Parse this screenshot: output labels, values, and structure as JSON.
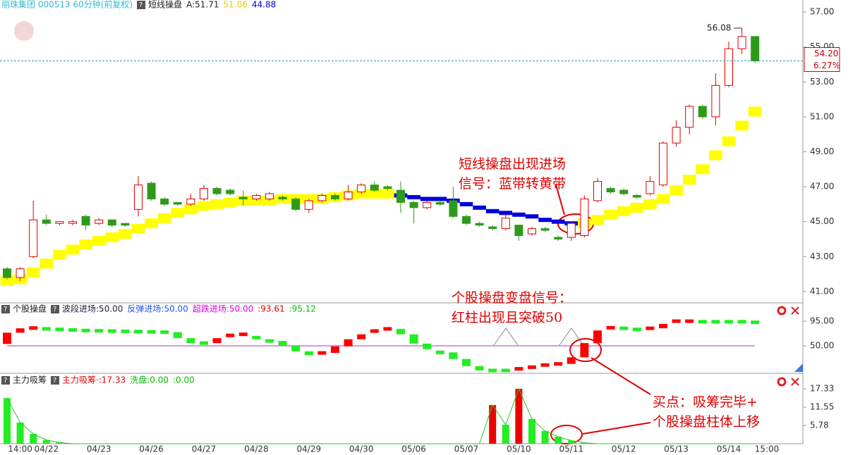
{
  "chart_data": [
    {
      "type": "candlestick",
      "legend": [
        {
          "text": "丽珠集团 000513 60分钟(前复权)",
          "color": "#33bbcc"
        },
        {
          "text": "短线操盘",
          "color": "#222222"
        },
        {
          "text": "A:51.71",
          "color": "#222222"
        },
        {
          "text": "51.06",
          "color": "#e6d200"
        },
        {
          "text": "44.88",
          "color": "#0000cc"
        }
      ],
      "categories": [
        null,
        "14:00",
        null,
        "04/22",
        null,
        null,
        null,
        "04/23",
        null,
        null,
        null,
        "04/26",
        null,
        null,
        null,
        "04/27",
        null,
        null,
        null,
        "04/28",
        null,
        null,
        null,
        "04/29",
        null,
        null,
        null,
        "04/30",
        null,
        null,
        null,
        "05/06",
        null,
        null,
        null,
        "05/07",
        null,
        null,
        null,
        "05/10",
        null,
        null,
        null,
        "05/11",
        null,
        null,
        null,
        "05/12",
        null,
        null,
        null,
        "05/13",
        null,
        null,
        null,
        "05/14",
        null,
        null
      ],
      "end_label": "15:00",
      "open": [
        42.3,
        41.8,
        43.0,
        45.1,
        44.9,
        44.9,
        45.3,
        44.9,
        45.1,
        44.9,
        45.7,
        47.2,
        46.3,
        46.1,
        46.0,
        46.3,
        46.9,
        46.8,
        46.4,
        46.3,
        46.3,
        46.4,
        46.3,
        45.7,
        46.2,
        46.5,
        46.3,
        46.7,
        47.1,
        47.0,
        46.8,
        46.1,
        45.8,
        46.1,
        46.2,
        45.3,
        44.9,
        44.7,
        44.6,
        44.8,
        44.3,
        44.6,
        44.1,
        44.1,
        44.2,
        46.2,
        46.9,
        46.8,
        46.5,
        46.6,
        47.1,
        49.5,
        50.4,
        51.6,
        51.0,
        52.8,
        54.9,
        55.6
      ],
      "high": [
        42.4,
        42.4,
        46.2,
        45.4,
        45.0,
        45.1,
        45.4,
        45.2,
        45.1,
        44.9,
        47.6,
        47.3,
        46.4,
        46.1,
        46.6,
        47.1,
        47.0,
        46.9,
        46.8,
        46.6,
        46.7,
        46.5,
        46.4,
        46.3,
        46.6,
        46.6,
        47.1,
        47.2,
        47.3,
        47.1,
        47.3,
        46.2,
        46.2,
        46.2,
        47.0,
        45.4,
        45.0,
        44.8,
        45.4,
        44.8,
        44.7,
        44.7,
        44.2,
        45.0,
        46.5,
        47.5,
        47.0,
        46.9,
        46.6,
        47.6,
        49.6,
        50.8,
        51.7,
        51.7,
        53.5,
        55.3,
        56.08,
        55.6
      ],
      "low": [
        41.7,
        41.6,
        42.9,
        44.8,
        44.8,
        44.8,
        44.5,
        44.8,
        44.7,
        44.7,
        45.3,
        46.2,
        45.9,
        45.9,
        45.9,
        46.2,
        46.5,
        46.5,
        45.9,
        46.2,
        46.2,
        46.2,
        45.6,
        45.5,
        46.1,
        46.2,
        46.2,
        46.6,
        46.7,
        46.8,
        45.5,
        44.9,
        45.7,
        45.9,
        45.2,
        44.8,
        44.7,
        44.5,
        44.5,
        43.9,
        44.2,
        44.4,
        43.9,
        43.9,
        44.1,
        46.1,
        46.6,
        46.5,
        46.3,
        46.5,
        47.0,
        49.3,
        50.0,
        50.9,
        50.5,
        52.7,
        54.6,
        54.1
      ],
      "close": [
        41.8,
        42.3,
        45.1,
        44.9,
        45.0,
        45.0,
        44.8,
        45.1,
        44.8,
        44.8,
        47.1,
        46.3,
        46.0,
        46.0,
        46.3,
        46.9,
        46.6,
        46.6,
        46.3,
        46.5,
        46.6,
        46.3,
        45.7,
        46.2,
        46.5,
        46.3,
        46.7,
        47.1,
        46.8,
        46.9,
        46.1,
        45.8,
        46.1,
        46.0,
        45.3,
        44.9,
        44.8,
        44.6,
        45.2,
        44.2,
        44.6,
        44.5,
        44.0,
        44.9,
        46.3,
        47.3,
        46.7,
        46.6,
        46.4,
        47.3,
        49.5,
        50.4,
        51.6,
        51.0,
        52.8,
        54.9,
        55.6,
        54.2
      ],
      "up_color": "#e00000",
      "down_color": "#2e9a1a",
      "band": {
        "values": [
          41.6,
          41.7,
          42.1,
          42.6,
          43.1,
          43.4,
          43.7,
          43.9,
          44.1,
          44.3,
          44.6,
          44.9,
          45.2,
          45.5,
          45.7,
          45.9,
          46.0,
          46.1,
          46.2,
          46.2,
          46.2,
          46.3,
          46.3,
          46.3,
          46.3,
          46.4,
          46.5,
          46.6,
          46.6,
          46.6,
          46.5,
          46.4,
          46.3,
          46.3,
          46.2,
          46.0,
          45.8,
          45.6,
          45.5,
          45.4,
          45.3,
          45.1,
          45.0,
          44.9,
          44.9,
          45.1,
          45.4,
          45.6,
          45.8,
          46.0,
          46.3,
          46.8,
          47.4,
          48.0,
          48.8,
          49.6,
          50.5,
          51.3
        ],
        "colors": [
          "#ffff00",
          "#ffff00",
          "#ffff00",
          "#ffff00",
          "#ffff00",
          "#ffff00",
          "#ffff00",
          "#ffff00",
          "#ffff00",
          "#ffff00",
          "#ffff00",
          "#ffff00",
          "#ffff00",
          "#ffff00",
          "#ffff00",
          "#ffff00",
          "#ffff00",
          "#ffff00",
          "#ffff00",
          "#ffff00",
          "#ffff00",
          "#ffff00",
          "#ffff00",
          "#ffff00",
          "#ffff00",
          "#ffff00",
          "#ffff00",
          "#ffff00",
          "#ffff00",
          "#ffff00",
          "#0000dd",
          "#0000dd",
          "#0000dd",
          "#0000dd",
          "#0000dd",
          "#0000dd",
          "#0000dd",
          "#0000dd",
          "#0000dd",
          "#0000dd",
          "#0000dd",
          "#0000dd",
          "#0000dd",
          "#0000dd",
          "#ffff00",
          "#ffff00",
          "#ffff00",
          "#ffff00",
          "#ffff00",
          "#ffff00",
          "#ffff00",
          "#ffff00",
          "#ffff00",
          "#ffff00",
          "#ffff00",
          "#ffff00",
          "#ffff00",
          "#ffff00"
        ]
      },
      "ylim": [
        40.35,
        57.69
      ],
      "yticks": [
        {
          "value": 41,
          "label": "41.00"
        },
        {
          "value": 43,
          "label": "43.00"
        },
        {
          "value": 45,
          "label": "45.00"
        },
        {
          "value": 47,
          "label": "47.00"
        },
        {
          "value": 49,
          "label": "49.00"
        },
        {
          "value": 51,
          "label": "51.00"
        },
        {
          "value": 53,
          "label": "53.00"
        },
        {
          "value": 55,
          "label": "55.00"
        },
        {
          "value": 57,
          "label": "57.00"
        }
      ],
      "last_price": {
        "value": 54.2,
        "label": "54.20"
      },
      "change_label": "6.27%",
      "high_label": {
        "value": 56.08,
        "label": "56.08"
      },
      "annotations": [
        {
          "lines": [
            "短线操盘出现进场",
            "信号：蓝带转黄带"
          ]
        },
        {
          "lines": [
            "个股操盘变盘信号：",
            "红柱出现且突破50"
          ]
        },
        {
          "lines": [
            "买点：吸筹完毕+",
            "个股操盘柱体上移"
          ]
        }
      ]
    },
    {
      "type": "step-bar",
      "legend": [
        {
          "text": "个股操盘",
          "color": "#222222"
        },
        {
          "text": "波段进场:50.00",
          "color": "#222244"
        },
        {
          "text": "反弹进场:50.00",
          "color": "#2255ee"
        },
        {
          "text": "超跌进场:50.00",
          "color": "#dd00dd"
        },
        {
          "text": ":93.61",
          "color": "#e00000"
        },
        {
          "text": ":95.12",
          "color": "#00bb00"
        }
      ],
      "values": [
        74,
        82,
        82.5,
        81,
        80,
        79,
        78,
        77.5,
        77,
        76.5,
        76,
        75.5,
        75,
        64,
        55,
        55,
        64,
        69,
        71,
        65,
        59,
        51,
        40,
        33,
        37,
        49,
        62,
        71,
        77,
        81,
        71,
        54,
        44,
        38,
        26,
        13,
        5,
        5,
        5,
        8,
        11,
        15,
        17,
        29,
        55,
        78,
        83,
        82,
        80,
        82,
        90,
        95,
        95,
        94,
        94,
        94,
        94,
        93
      ],
      "up_color": "#ff0000",
      "down_color": "#22ee22",
      "ylim": [
        2.4,
        125.9
      ],
      "yticks": [
        {
          "value": 50,
          "label": "50.00"
        },
        {
          "value": 95,
          "label": "95.00"
        }
      ],
      "ref_value": 50,
      "ref_color": "#b030c0"
    },
    {
      "type": "volume-bar",
      "legend": [
        {
          "text": "主力吸筹",
          "color": "#222222"
        },
        {
          "text": "主力吸筹·:17.33",
          "color": "#e00000"
        },
        {
          "text": "洗盘:0.00",
          "color": "#00bb00"
        },
        {
          "text": ":0.00",
          "color": "#00bb00"
        }
      ],
      "values": [
        14.4,
        6.7,
        3.1,
        1.2,
        0.4,
        0,
        0,
        0,
        0,
        0,
        0,
        0,
        0,
        0,
        0,
        0,
        0,
        0,
        0,
        0,
        0,
        0,
        0,
        0,
        0,
        0,
        0,
        0,
        0,
        0,
        0,
        0,
        0,
        0,
        0,
        0,
        0,
        12.2,
        6.0,
        17.33,
        7.8,
        4.0,
        2.2,
        1.0,
        0.3,
        0,
        0,
        0,
        0,
        0,
        0,
        0,
        0,
        0,
        0,
        0,
        0,
        0
      ],
      "colors": [
        "#22ee22",
        "#22ee22",
        "#22ee22",
        "#22ee22",
        "#22ee22",
        "#22ee22",
        "#22ee22",
        "#22ee22",
        "#22ee22",
        "#22ee22",
        "#22ee22",
        "#22ee22",
        "#22ee22",
        "#22ee22",
        "#22ee22",
        "#22ee22",
        "#22ee22",
        "#22ee22",
        "#22ee22",
        "#22ee22",
        "#22ee22",
        "#22ee22",
        "#22ee22",
        "#22ee22",
        "#22ee22",
        "#22ee22",
        "#22ee22",
        "#22ee22",
        "#22ee22",
        "#22ee22",
        "#22ee22",
        "#22ee22",
        "#22ee22",
        "#22ee22",
        "#22ee22",
        "#22ee22",
        "#22ee22",
        "#ee0000",
        "#22ee22",
        "#ee0000",
        "#22ee22",
        "#22ee22",
        "#22ee22",
        "#22ee22",
        "#22ee22",
        "#22ee22",
        "#22ee22",
        "#22ee22",
        "#22ee22",
        "#22ee22",
        "#22ee22",
        "#22ee22",
        "#22ee22",
        "#22ee22",
        "#22ee22",
        "#22ee22",
        "#22ee22",
        "#22ee22"
      ],
      "line_color": "#22cc22",
      "ylim": [
        0,
        20.9
      ],
      "yticks": [
        {
          "value": 5.78,
          "label": "5.78"
        },
        {
          "value": 11.55,
          "label": "11.55"
        },
        {
          "value": 17.33,
          "label": "17.33"
        }
      ]
    }
  ]
}
